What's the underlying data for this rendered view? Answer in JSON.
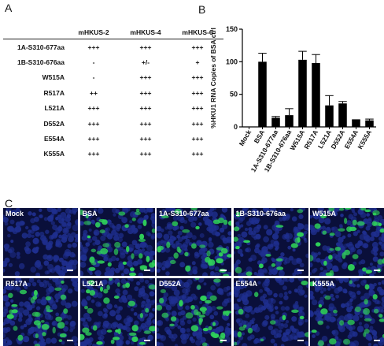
{
  "panels": {
    "a": "A",
    "b": "B",
    "c": "C"
  },
  "table": {
    "headers": [
      "mHKUS-2",
      "mHKUS-4",
      "mHKUS-6"
    ],
    "rows": [
      {
        "label": "1A-S310-677aa",
        "cells": [
          "+++",
          "+++",
          "+++"
        ]
      },
      {
        "label": "1B-S310-676aa",
        "cells": [
          "-",
          "+/-",
          "+"
        ]
      },
      {
        "label": "W515A",
        "cells": [
          "-",
          "+++",
          "+++"
        ]
      },
      {
        "label": "R517A",
        "cells": [
          "++",
          "+++",
          "+++"
        ]
      },
      {
        "label": "L521A",
        "cells": [
          "+++",
          "+++",
          "+++"
        ]
      },
      {
        "label": "D552A",
        "cells": [
          "+++",
          "+++",
          "+++"
        ]
      },
      {
        "label": "E554A",
        "cells": [
          "+++",
          "+++",
          "+++"
        ]
      },
      {
        "label": "K555A",
        "cells": [
          "+++",
          "+++",
          "+++"
        ]
      }
    ]
  },
  "chart_data": {
    "type": "bar",
    "ylabel": "%HKU1  RNA Copies of BSA ctrl",
    "xlabel": "",
    "ylim": [
      0,
      150
    ],
    "yticks": [
      0,
      50,
      100,
      150
    ],
    "categories": [
      "Mock",
      "BSA",
      "1A-S310-677aa",
      "1B-S310-676aa",
      "W515A",
      "R517A",
      "L521A",
      "D552A",
      "E554A",
      "K555A"
    ],
    "values": [
      0,
      100,
      14,
      18,
      103,
      98,
      33,
      36,
      11,
      10
    ],
    "errors": [
      0,
      13,
      2,
      10,
      13,
      13,
      15,
      3,
      0,
      2
    ],
    "bar_color": "#000000"
  },
  "images": [
    {
      "label": "Mock",
      "green": 0.0
    },
    {
      "label": "BSA",
      "green": 0.55
    },
    {
      "label": "1A-S310-677aa",
      "green": 0.45
    },
    {
      "label": "1B-S310-676aa",
      "green": 0.25
    },
    {
      "label": "W515A",
      "green": 0.55
    },
    {
      "label": "R517A",
      "green": 0.45
    },
    {
      "label": "L521A",
      "green": 0.5
    },
    {
      "label": "D552A",
      "green": 0.55
    },
    {
      "label": "E554A",
      "green": 0.2
    },
    {
      "label": "K555A",
      "green": 0.35
    }
  ],
  "colors": {
    "nuclei": "#1f2f8f",
    "background": "#0a0f3a",
    "infected": "#2fd05a"
  }
}
